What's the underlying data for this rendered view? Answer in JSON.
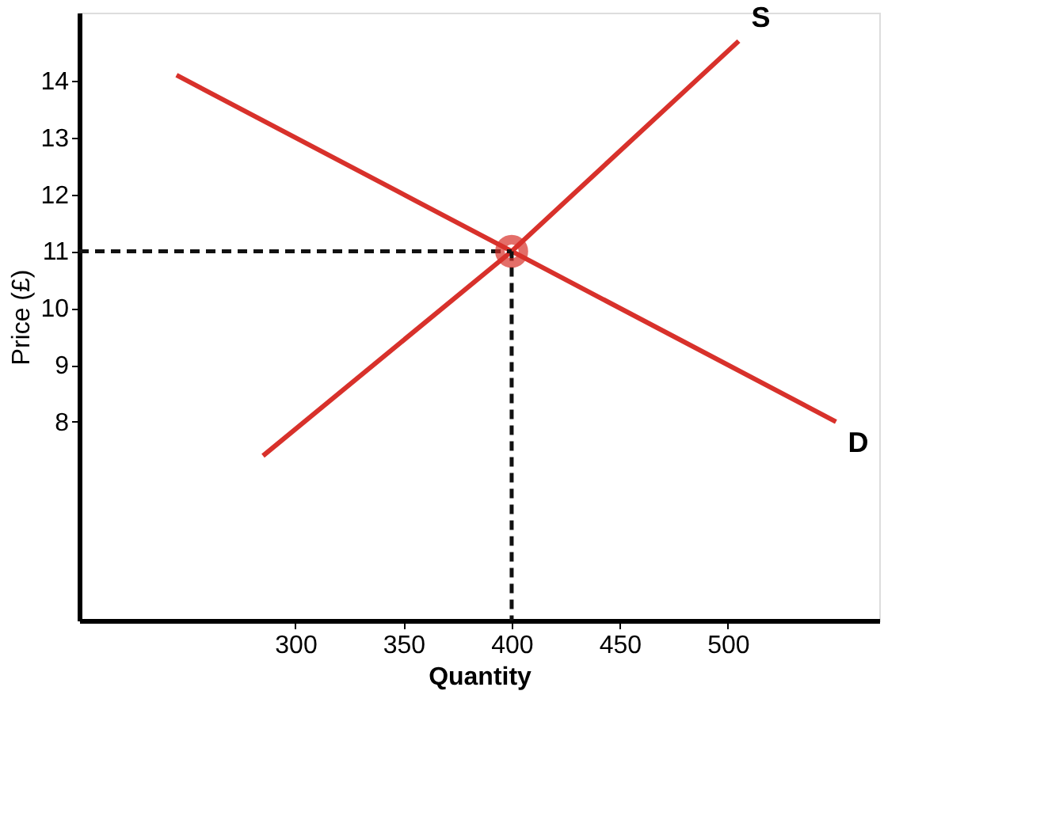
{
  "chart_data": {
    "type": "line",
    "xlabel": "Quantity",
    "ylabel": "Price (£)",
    "xlim": [
      200,
      570
    ],
    "ylim": [
      4.5,
      15.2
    ],
    "xticks": [
      300,
      350,
      400,
      450,
      500
    ],
    "yticks": [
      8,
      9,
      10,
      11,
      12,
      13,
      14
    ],
    "grid": false,
    "series": [
      {
        "name": "S",
        "x": [
          285,
          400,
          505
        ],
        "values": [
          7.4,
          11,
          14.7
        ],
        "color": "#d8312b",
        "line_style": "solid"
      },
      {
        "name": "D",
        "x": [
          245,
          400,
          550
        ],
        "values": [
          14.1,
          11,
          8.0
        ],
        "color": "#d8312b",
        "line_style": "solid"
      },
      {
        "x": [
          200,
          400
        ],
        "values": [
          11,
          11
        ],
        "color": "#111111",
        "line_style": "dashed"
      },
      {
        "x": [
          400,
          400
        ],
        "values": [
          11,
          4.5
        ],
        "color": "#111111",
        "line_style": "dashed"
      },
      {
        "type": "scatter",
        "x": [
          400
        ],
        "values": [
          11
        ],
        "color": "#d8312b",
        "marker": "circle"
      }
    ]
  }
}
